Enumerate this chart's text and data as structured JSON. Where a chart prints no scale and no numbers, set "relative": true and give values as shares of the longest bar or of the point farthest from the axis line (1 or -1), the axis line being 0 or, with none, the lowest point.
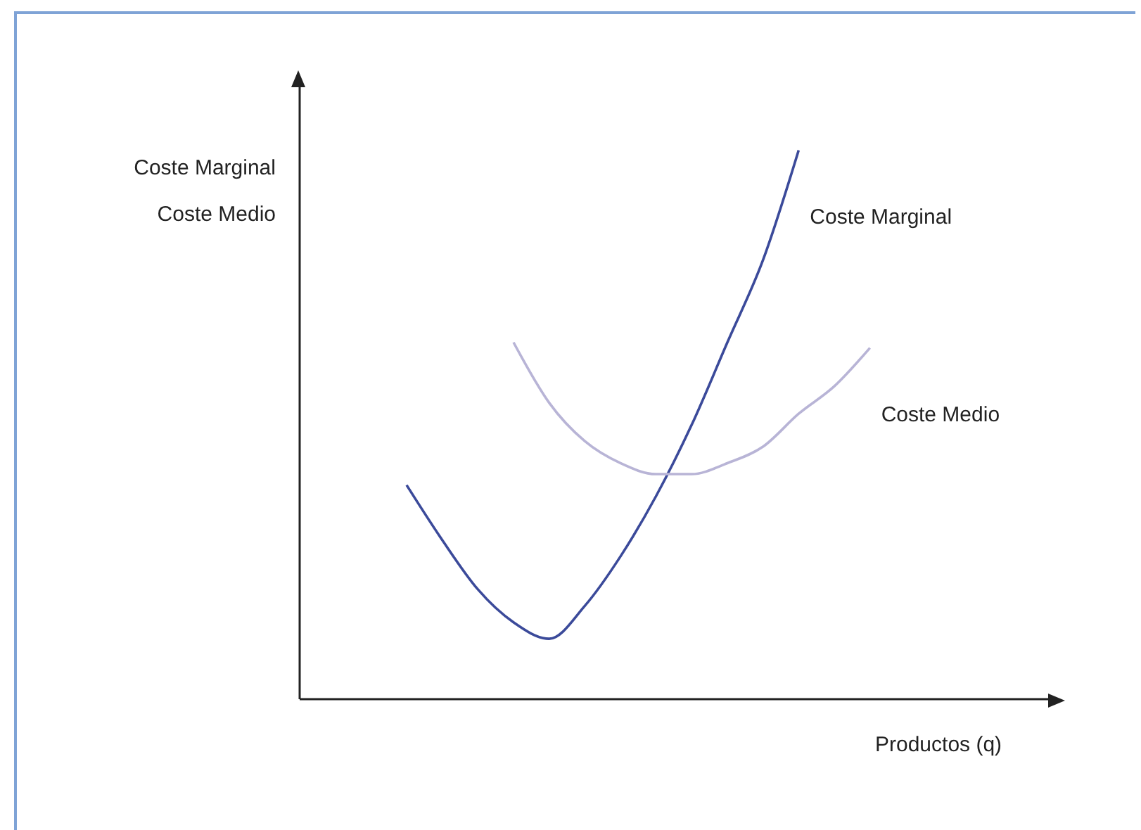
{
  "chart_data": {
    "type": "line",
    "relative": true,
    "ylabel": "Coste Marginal\nCoste Medio",
    "xlabel": "Productos (q)",
    "categories": [
      null,
      null,
      null,
      null,
      null,
      null,
      null,
      null,
      null,
      null,
      null,
      null,
      null,
      null,
      null,
      null,
      null,
      null,
      null,
      null,
      null,
      null
    ],
    "marker": "none",
    "grid": false,
    "legend": false,
    "series": [
      {
        "name": "Coste Marginal",
        "color": "#3b4a9a",
        "values": [
          null,
          null,
          null,
          0.39,
          0.29,
          0.2,
          0.14,
          0.11,
          0.17,
          0.26,
          0.37,
          0.5,
          0.65,
          0.8,
          1,
          null,
          null,
          null,
          null,
          null,
          null,
          null
        ]
      },
      {
        "name": "Coste Medio",
        "color": "#b8b4d6",
        "values": [
          null,
          null,
          null,
          null,
          null,
          null,
          0.65,
          0.54,
          0.47,
          0.43,
          0.41,
          0.41,
          0.43,
          0.46,
          0.52,
          0.57,
          0.64,
          null,
          null,
          null,
          null,
          null
        ]
      }
    ]
  }
}
